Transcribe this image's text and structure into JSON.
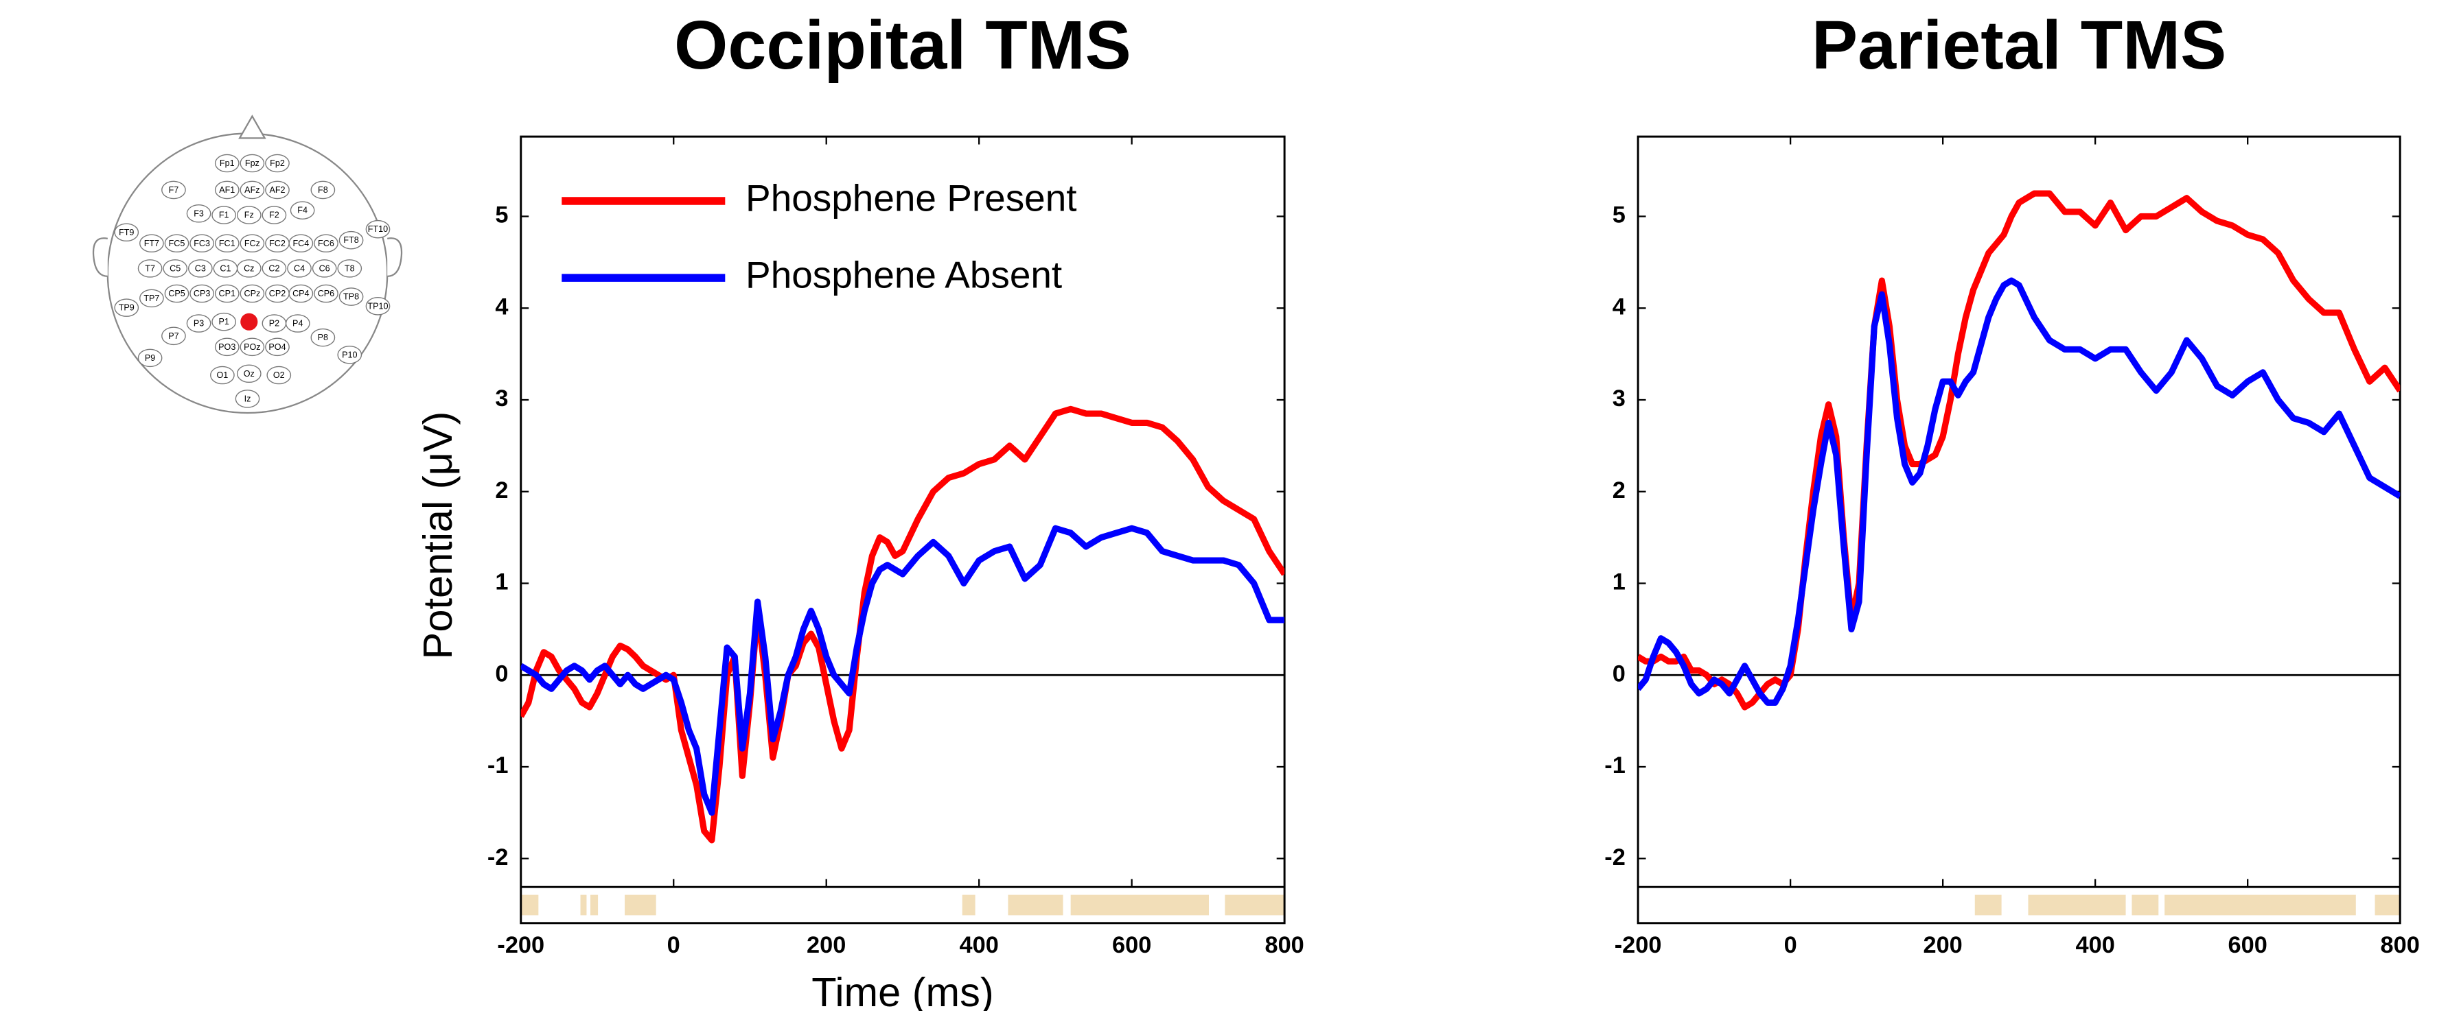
{
  "chart_data": [
    {
      "type": "line",
      "title": "Occipital TMS",
      "xlabel": "Time (ms)",
      "ylabel": "Potential (μV)",
      "legend": "upper left",
      "x": [
        -200,
        -190,
        -180,
        -170,
        -160,
        -150,
        -140,
        -130,
        -120,
        -110,
        -100,
        -90,
        -80,
        -70,
        -60,
        -50,
        -40,
        -30,
        -20,
        -10,
        0,
        10,
        20,
        30,
        40,
        50,
        60,
        70,
        80,
        90,
        100,
        110,
        120,
        130,
        140,
        150,
        160,
        170,
        180,
        190,
        200,
        210,
        220,
        230,
        240,
        250,
        260,
        270,
        280,
        290,
        300,
        320,
        340,
        360,
        380,
        400,
        420,
        440,
        460,
        480,
        500,
        520,
        540,
        560,
        580,
        600,
        620,
        640,
        660,
        680,
        700,
        720,
        740,
        760,
        780,
        800
      ],
      "series": [
        {
          "name": "Phosphene Present",
          "color": "#ff0000",
          "values": [
            -0.45,
            -0.3,
            0.05,
            0.25,
            0.2,
            0.05,
            -0.05,
            -0.15,
            -0.3,
            -0.35,
            -0.2,
            0.0,
            0.2,
            0.32,
            0.28,
            0.2,
            0.1,
            0.05,
            0.0,
            -0.05,
            0.0,
            -0.6,
            -0.9,
            -1.2,
            -1.7,
            -1.8,
            -1.0,
            0.0,
            0.2,
            -1.1,
            -0.3,
            0.7,
            0.0,
            -0.9,
            -0.5,
            0.0,
            0.1,
            0.35,
            0.45,
            0.3,
            -0.1,
            -0.5,
            -0.8,
            -0.6,
            0.2,
            0.9,
            1.3,
            1.5,
            1.45,
            1.3,
            1.35,
            1.7,
            2.0,
            2.15,
            2.2,
            2.3,
            2.35,
            2.5,
            2.35,
            2.6,
            2.85,
            2.9,
            2.85,
            2.85,
            2.8,
            2.75,
            2.75,
            2.7,
            2.55,
            2.35,
            2.05,
            1.9,
            1.8,
            1.7,
            1.35,
            1.1
          ]
        },
        {
          "name": "Phosphene Absent",
          "color": "#0000ff",
          "values": [
            0.1,
            0.05,
            0.0,
            -0.1,
            -0.15,
            -0.05,
            0.05,
            0.1,
            0.05,
            -0.05,
            0.05,
            0.1,
            0.0,
            -0.1,
            0.0,
            -0.1,
            -0.15,
            -0.1,
            -0.05,
            0.0,
            -0.05,
            -0.3,
            -0.6,
            -0.8,
            -1.3,
            -1.5,
            -0.6,
            0.3,
            0.2,
            -0.8,
            -0.2,
            0.8,
            0.2,
            -0.7,
            -0.4,
            0.0,
            0.2,
            0.5,
            0.7,
            0.5,
            0.2,
            0.0,
            -0.1,
            -0.2,
            0.3,
            0.7,
            1.0,
            1.15,
            1.2,
            1.15,
            1.1,
            1.3,
            1.45,
            1.3,
            1.0,
            1.25,
            1.35,
            1.4,
            1.05,
            1.2,
            1.6,
            1.55,
            1.4,
            1.5,
            1.55,
            1.6,
            1.55,
            1.35,
            1.3,
            1.25,
            1.25,
            1.25,
            1.2,
            1.0,
            0.6,
            0.6
          ]
        }
      ],
      "significant_intervals": [
        [
          -200,
          -177
        ],
        [
          -122,
          -114
        ],
        [
          -109,
          -99
        ],
        [
          -64,
          -23
        ],
        [
          378,
          395
        ],
        [
          438,
          510
        ],
        [
          520,
          701
        ],
        [
          722,
          800
        ]
      ],
      "interval_color": "#f2deb8",
      "xlim": [
        -200,
        800
      ],
      "xticks": [
        -200,
        0,
        200,
        400,
        600,
        800
      ],
      "ylim": [
        -2.31,
        5.87
      ],
      "yticks": [
        -2,
        -1,
        0,
        1,
        2,
        3,
        4,
        5
      ],
      "zero_line": true
    },
    {
      "type": "line",
      "title": "Parietal TMS",
      "x": [
        -200,
        -190,
        -180,
        -170,
        -160,
        -150,
        -140,
        -130,
        -120,
        -110,
        -100,
        -90,
        -80,
        -70,
        -60,
        -50,
        -40,
        -30,
        -20,
        -10,
        0,
        10,
        20,
        30,
        40,
        50,
        60,
        70,
        80,
        90,
        100,
        110,
        120,
        130,
        140,
        150,
        160,
        170,
        180,
        190,
        200,
        210,
        220,
        230,
        240,
        250,
        260,
        270,
        280,
        290,
        300,
        320,
        340,
        360,
        380,
        400,
        420,
        440,
        460,
        480,
        500,
        520,
        540,
        560,
        580,
        600,
        620,
        640,
        660,
        680,
        700,
        720,
        740,
        760,
        780,
        800
      ],
      "series": [
        {
          "color": "#ff0000",
          "values": [
            0.2,
            0.15,
            0.15,
            0.2,
            0.15,
            0.15,
            0.2,
            0.05,
            0.05,
            0.0,
            -0.1,
            -0.05,
            -0.1,
            -0.2,
            -0.35,
            -0.3,
            -0.2,
            -0.1,
            -0.05,
            -0.1,
            0.0,
            0.5,
            1.3,
            2.0,
            2.6,
            2.95,
            2.6,
            1.5,
            0.6,
            1.0,
            2.5,
            3.8,
            4.3,
            3.8,
            3.0,
            2.5,
            2.3,
            2.3,
            2.35,
            2.4,
            2.6,
            3.0,
            3.5,
            3.9,
            4.2,
            4.4,
            4.6,
            4.7,
            4.8,
            5.0,
            5.15,
            5.25,
            5.25,
            5.05,
            5.05,
            4.9,
            5.15,
            4.85,
            5.0,
            5.0,
            5.1,
            5.2,
            5.05,
            4.95,
            4.9,
            4.8,
            4.75,
            4.6,
            4.3,
            4.1,
            3.95,
            3.95,
            3.55,
            3.2,
            3.35,
            3.1
          ]
        },
        {
          "color": "#0000ff",
          "values": [
            -0.15,
            -0.05,
            0.2,
            0.4,
            0.35,
            0.25,
            0.1,
            -0.1,
            -0.2,
            -0.15,
            -0.05,
            -0.1,
            -0.2,
            -0.05,
            0.1,
            -0.05,
            -0.2,
            -0.3,
            -0.3,
            -0.15,
            0.1,
            0.6,
            1.2,
            1.8,
            2.3,
            2.75,
            2.4,
            1.4,
            0.5,
            0.8,
            2.4,
            3.8,
            4.15,
            3.6,
            2.8,
            2.3,
            2.1,
            2.2,
            2.5,
            2.9,
            3.2,
            3.2,
            3.05,
            3.2,
            3.3,
            3.6,
            3.9,
            4.1,
            4.25,
            4.3,
            4.25,
            3.9,
            3.65,
            3.55,
            3.55,
            3.45,
            3.55,
            3.55,
            3.3,
            3.1,
            3.3,
            3.65,
            3.45,
            3.15,
            3.05,
            3.2,
            3.3,
            3.0,
            2.8,
            2.75,
            2.65,
            2.85,
            2.5,
            2.15,
            2.05,
            1.95
          ]
        }
      ],
      "significant_intervals": [
        [
          242,
          277
        ],
        [
          312,
          440
        ],
        [
          448,
          483
        ],
        [
          491,
          742
        ],
        [
          767,
          800
        ]
      ],
      "interval_color": "#f2deb8",
      "xlim": [
        -200,
        800
      ],
      "xticks": [
        -200,
        0,
        200,
        400,
        600,
        800
      ],
      "ylim": [
        -2.31,
        5.87
      ],
      "yticks": [
        -2,
        -1,
        0,
        1,
        2,
        3,
        4,
        5
      ],
      "zero_line": true
    }
  ],
  "electrode_map": {
    "highlight_color": "#e8141a",
    "labels": [
      "Fp1",
      "Fpz",
      "Fp2",
      "F7",
      "AF1",
      "AFz",
      "AF2",
      "F8",
      "F3",
      "F1",
      "Fz",
      "F2",
      "F4",
      "FT9",
      "FT7",
      "FC5",
      "FC3",
      "FC1",
      "FCz",
      "FC2",
      "FC4",
      "FC6",
      "FT8",
      "FT10",
      "T7",
      "C5",
      "C3",
      "C1",
      "Cz",
      "C2",
      "C4",
      "C6",
      "T8",
      "TP9",
      "TP7",
      "CP5",
      "CP3",
      "CP1",
      "CPz",
      "CP2",
      "CP4",
      "CP6",
      "TP8",
      "TP10",
      "P7",
      "P3",
      "P1",
      "P2",
      "P4",
      "P8",
      "P9",
      "PO3",
      "POz",
      "PO4",
      "P10",
      "O1",
      "Oz",
      "O2",
      "Iz"
    ]
  }
}
